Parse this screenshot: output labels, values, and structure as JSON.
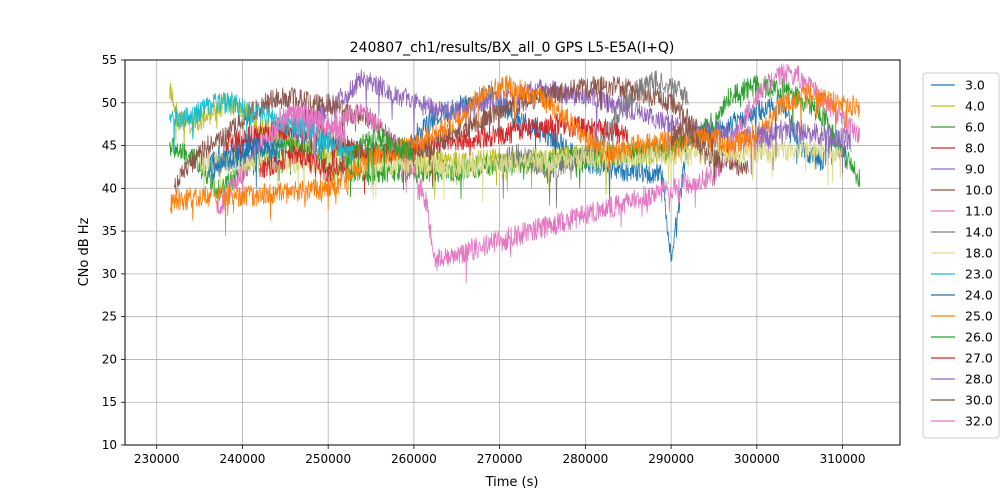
{
  "chart_data": {
    "type": "line",
    "title": "240807_ch1/results/BX_all_0 GPS L5-E5A(I+Q)",
    "xlabel": "Time (s)",
    "ylabel": "CNo dB Hz",
    "xlim": [
      226300,
      316700
    ],
    "ylim": [
      10,
      55
    ],
    "x_ticks": [
      230000,
      240000,
      250000,
      260000,
      270000,
      280000,
      290000,
      300000,
      310000
    ],
    "x_tick_labels": [
      "230000",
      "240000",
      "250000",
      "260000",
      "270000",
      "280000",
      "290000",
      "300000",
      "310000"
    ],
    "y_ticks": [
      10,
      15,
      20,
      25,
      30,
      35,
      40,
      45,
      50,
      55
    ],
    "y_tick_labels": [
      "10",
      "15",
      "20",
      "25",
      "30",
      "35",
      "40",
      "45",
      "50",
      "55"
    ],
    "grid": true,
    "legend_position": "right",
    "series": [
      {
        "name": "3.0",
        "color": "#1f77b4",
        "x": [
          236000,
          240000,
          245000,
          250000,
          255000,
          258000,
          262000,
          266000,
          269000,
          272000,
          276000,
          280000,
          285000,
          289000,
          290000,
          292000,
          296000,
          300000,
          303000,
          305000,
          307500,
          309000,
          310500
        ],
        "y": [
          43,
          45,
          46,
          45,
          44,
          44,
          48,
          50,
          51,
          48,
          46,
          43,
          42,
          41.5,
          31.5,
          46,
          47,
          49,
          50,
          45,
          43,
          46,
          44
        ]
      },
      {
        "name": "4.0",
        "color": "#bcbd22",
        "x": [
          231500,
          232500,
          234000,
          236000,
          238000,
          240000,
          243000,
          246000,
          249000,
          250000,
          252000,
          255000,
          260000,
          265000,
          270000,
          275000,
          280000,
          285000,
          290000
        ],
        "y": [
          51.5,
          48,
          47.5,
          48.5,
          50,
          49,
          47,
          45,
          44,
          44,
          44,
          44,
          43.5,
          43,
          43.5,
          43.5,
          44,
          44,
          44
        ]
      },
      {
        "name": "6.0",
        "color": "#2ca02c",
        "x": [
          231500,
          233000,
          235000,
          237000,
          239000,
          241000,
          243000,
          245000,
          247000,
          250000,
          253000,
          256000,
          260000,
          265000,
          270000,
          275000,
          280000,
          285000,
          288000,
          291000,
          293000,
          295000,
          297000,
          300000,
          303000,
          306000,
          308000,
          310000,
          312000
        ],
        "y": [
          45,
          44,
          43,
          40,
          41,
          43,
          44,
          45,
          44,
          43,
          42,
          42,
          42,
          42,
          43,
          43,
          43.5,
          44,
          44.5,
          45,
          46,
          48,
          51,
          52,
          51.5,
          50,
          48,
          44,
          41
        ]
      },
      {
        "name": "8.0",
        "color": "#d62728",
        "x": [
          238000,
          241000,
          244000,
          247000,
          250000,
          252000,
          254000,
          256000,
          259000,
          262000,
          265000,
          268000,
          271000,
          274000,
          277000,
          280000,
          282000,
          285000
        ],
        "y": [
          45,
          46,
          47,
          47,
          46,
          45,
          44,
          44,
          44.5,
          45,
          45.5,
          46,
          46.5,
          47,
          47.5,
          47,
          47,
          46
        ]
      },
      {
        "name": "9.0",
        "color": "#9467bd",
        "x": [
          246000,
          248000,
          250000,
          252000,
          254000,
          256000,
          258000,
          260000,
          263000,
          266000,
          269000,
          272000,
          275000,
          278000,
          281000,
          284000,
          287000,
          290000,
          293000,
          296000,
          299000,
          302000
        ],
        "y": [
          47,
          48,
          49,
          51,
          53,
          52,
          51,
          50,
          49,
          49.5,
          50,
          51,
          51.5,
          51,
          50.5,
          49.5,
          48.5,
          47.5,
          47,
          46.5,
          46,
          45.5
        ]
      },
      {
        "name": "10.0",
        "color": "#8c564b",
        "x": [
          232000,
          234000,
          236000,
          238000,
          240000,
          242000,
          244000,
          246000,
          248000,
          250000,
          252000,
          255000,
          257000,
          259000,
          262000,
          266000,
          270000,
          274000,
          278000,
          282000,
          286000,
          290000,
          293000,
          296000,
          299000
        ],
        "y": [
          40,
          43,
          45,
          46,
          48,
          49.5,
          50.5,
          50.5,
          50,
          50,
          49,
          48,
          46,
          44,
          45,
          47,
          49,
          50.5,
          51.5,
          52,
          51.5,
          50,
          47,
          44,
          42
        ]
      },
      {
        "name": "11.0",
        "color": "#e377c2",
        "x": [
          237000,
          238500,
          240000,
          242000,
          244000,
          246000,
          248000,
          250000,
          252000,
          254000,
          256000,
          258000,
          260000,
          261500,
          262300,
          295000,
          297000,
          299000,
          301000,
          303000,
          305000,
          307000,
          309000,
          311000,
          312000
        ],
        "y": [
          37,
          40,
          42,
          45,
          47,
          49,
          48,
          47.5,
          48,
          49,
          47,
          45,
          42,
          38,
          31.5,
          41.5,
          45,
          49,
          52,
          53.5,
          53,
          51,
          49,
          47,
          46
        ]
      },
      {
        "name": "14.0",
        "color": "#7f7f7f",
        "x": [
          270000,
          272000,
          274000,
          276000,
          278000,
          280000,
          282000,
          284000,
          286000,
          288000,
          290000,
          292000
        ],
        "y": [
          43,
          44,
          43,
          42,
          43,
          44,
          46,
          49,
          51.5,
          52.5,
          52,
          50.5
        ]
      },
      {
        "name": "18.0",
        "color": "#dbdb8d",
        "x": [
          235000,
          250000,
          265000,
          280000,
          295000,
          310000
        ],
        "y": [
          43,
          43,
          42.5,
          43.5,
          44,
          44.5
        ]
      },
      {
        "name": "23.0",
        "color": "#17becf",
        "x": [
          231500,
          233000,
          235000,
          237000,
          239000,
          241000,
          243000,
          245000,
          247000,
          249000,
          251000,
          253000
        ],
        "y": [
          49,
          48,
          49,
          50,
          50,
          49,
          48.5,
          47.5,
          47,
          46,
          45,
          44
        ]
      },
      {
        "name": "24.0",
        "color": "#1f77b4",
        "x": [
          236000,
          238000,
          240000,
          242000,
          244000
        ],
        "y": [
          42,
          43,
          44,
          45,
          44
        ]
      },
      {
        "name": "25.0",
        "color": "#ff7f0e",
        "x": [
          231600,
          232000,
          235000,
          240000,
          245000,
          250000,
          251000,
          253000,
          256000,
          260000,
          265000,
          268000,
          271000,
          274000,
          277000,
          280000,
          283000,
          286000,
          290000,
          295000,
          297000,
          299000,
          301000,
          303000,
          306000,
          309000,
          312000
        ],
        "y": [
          38,
          38.5,
          39,
          39,
          39.5,
          40,
          40.5,
          42,
          44,
          45,
          48,
          51,
          52,
          51,
          49,
          46,
          44,
          45,
          45.5,
          46,
          45,
          46,
          47,
          50,
          51,
          50,
          49.5
        ]
      },
      {
        "name": "26.0",
        "color": "#2ca02c",
        "x": [
          252000,
          254000,
          256000,
          258000,
          260000
        ],
        "y": [
          43,
          45,
          46,
          45,
          44
        ]
      },
      {
        "name": "27.0",
        "color": "#d62728",
        "x": [
          242000,
          244000,
          246000,
          248000,
          250000,
          252000
        ],
        "y": [
          42,
          43,
          44,
          43,
          42,
          42.5
        ]
      },
      {
        "name": "28.0",
        "color": "#9467bd",
        "x": [
          300000,
          303000,
          306000,
          309000,
          311000
        ],
        "y": [
          46,
          47,
          46.5,
          46,
          45.5
        ]
      },
      {
        "name": "30.0",
        "color": "#8c564b",
        "x": [
          290000,
          292000,
          294000,
          296000
        ],
        "y": [
          46,
          47,
          44,
          43
        ]
      },
      {
        "name": "32.0",
        "color": "#e377c2",
        "x": [
          244000,
          246000,
          248000,
          250000,
          252000
        ],
        "y": [
          48,
          49,
          48.5,
          47,
          46
        ]
      }
    ]
  }
}
